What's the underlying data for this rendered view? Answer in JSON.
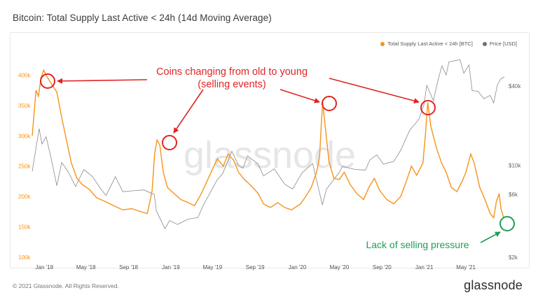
{
  "header": {
    "title": "Bitcoin: Total Supply Last Active < 24h (14d Moving Average)"
  },
  "footer": {
    "copyright": "© 2021 Glassnode. All Rights Reserved.",
    "logo": "glassnode"
  },
  "watermark": "glassnode",
  "annotations": {
    "main_line1": "Coins changing from old to young",
    "main_line2": "(selling events)",
    "green": "Lack of selling pressure"
  },
  "colors": {
    "supply": "#f7931a",
    "price": "#8a8a8a",
    "red": "#e02424",
    "green": "#1f9d55"
  },
  "chart_data": {
    "type": "line",
    "title": "Bitcoin: Total Supply Last Active < 24h (14d Moving Average)",
    "x_range": [
      "2017-11-27",
      "2021-08-20"
    ],
    "x_ticks": [
      "Jan '18",
      "May '18",
      "Sep '18",
      "Jan '19",
      "May '19",
      "Sep '19",
      "Jan '20",
      "May '20",
      "Sep '20",
      "Jan '21",
      "May '21"
    ],
    "y_left": {
      "ticks": [
        "100k",
        "150k",
        "200k",
        "250k",
        "300k",
        "350k",
        "400k"
      ],
      "range": [
        100000,
        420000
      ]
    },
    "y_right": {
      "scale": "log",
      "ticks": [
        "$2k",
        "$6k",
        "$10k",
        "$40k"
      ],
      "range": [
        2000,
        60000
      ]
    },
    "legend_position": "top-right",
    "grid": false,
    "series": [
      {
        "name": "Total Supply Last Active < 24h [BTC]",
        "axis": "left",
        "points": [
          [
            "2017-11-27",
            300000
          ],
          [
            "2017-12-08",
            375000
          ],
          [
            "2017-12-15",
            365000
          ],
          [
            "2017-12-22",
            395000
          ],
          [
            "2017-12-30",
            408000
          ],
          [
            "2018-01-08",
            398000
          ],
          [
            "2018-01-22",
            385000
          ],
          [
            "2018-02-06",
            372000
          ],
          [
            "2018-02-20",
            330000
          ],
          [
            "2018-03-05",
            295000
          ],
          [
            "2018-03-20",
            255000
          ],
          [
            "2018-04-05",
            230000
          ],
          [
            "2018-04-20",
            220000
          ],
          [
            "2018-05-10",
            212000
          ],
          [
            "2018-06-01",
            198000
          ],
          [
            "2018-06-25",
            192000
          ],
          [
            "2018-07-20",
            185000
          ],
          [
            "2018-08-15",
            178000
          ],
          [
            "2018-09-10",
            180000
          ],
          [
            "2018-10-01",
            176000
          ],
          [
            "2018-10-25",
            172000
          ],
          [
            "2018-11-08",
            210000
          ],
          [
            "2018-11-15",
            270000
          ],
          [
            "2018-11-22",
            293000
          ],
          [
            "2018-11-30",
            285000
          ],
          [
            "2018-12-10",
            240000
          ],
          [
            "2018-12-22",
            215000
          ],
          [
            "2019-01-10",
            205000
          ],
          [
            "2019-01-30",
            195000
          ],
          [
            "2019-02-20",
            190000
          ],
          [
            "2019-03-10",
            185000
          ],
          [
            "2019-03-30",
            205000
          ],
          [
            "2019-04-15",
            225000
          ],
          [
            "2019-05-01",
            245000
          ],
          [
            "2019-05-15",
            262000
          ],
          [
            "2019-06-01",
            250000
          ],
          [
            "2019-06-15",
            270000
          ],
          [
            "2019-07-01",
            260000
          ],
          [
            "2019-07-15",
            240000
          ],
          [
            "2019-08-01",
            228000
          ],
          [
            "2019-08-20",
            218000
          ],
          [
            "2019-09-10",
            205000
          ],
          [
            "2019-09-25",
            188000
          ],
          [
            "2019-10-15",
            182000
          ],
          [
            "2019-11-05",
            190000
          ],
          [
            "2019-11-25",
            182000
          ],
          [
            "2019-12-15",
            178000
          ],
          [
            "2020-01-10",
            188000
          ],
          [
            "2020-01-25",
            200000
          ],
          [
            "2020-02-10",
            215000
          ],
          [
            "2020-02-25",
            240000
          ],
          [
            "2020-03-05",
            265000
          ],
          [
            "2020-03-10",
            320000
          ],
          [
            "2020-03-14",
            355000
          ],
          [
            "2020-03-22",
            310000
          ],
          [
            "2020-04-01",
            258000
          ],
          [
            "2020-04-15",
            230000
          ],
          [
            "2020-05-01",
            228000
          ],
          [
            "2020-05-15",
            240000
          ],
          [
            "2020-06-01",
            220000
          ],
          [
            "2020-06-20",
            205000
          ],
          [
            "2020-07-10",
            195000
          ],
          [
            "2020-07-25",
            215000
          ],
          [
            "2020-08-10",
            230000
          ],
          [
            "2020-08-25",
            210000
          ],
          [
            "2020-09-15",
            195000
          ],
          [
            "2020-10-05",
            188000
          ],
          [
            "2020-10-25",
            200000
          ],
          [
            "2020-11-10",
            225000
          ],
          [
            "2020-11-25",
            250000
          ],
          [
            "2020-12-10",
            235000
          ],
          [
            "2020-12-28",
            255000
          ],
          [
            "2021-01-05",
            308000
          ],
          [
            "2021-01-11",
            355000
          ],
          [
            "2021-01-20",
            315000
          ],
          [
            "2021-02-05",
            280000
          ],
          [
            "2021-02-20",
            255000
          ],
          [
            "2021-03-05",
            240000
          ],
          [
            "2021-03-20",
            215000
          ],
          [
            "2021-04-05",
            208000
          ],
          [
            "2021-04-20",
            225000
          ],
          [
            "2021-05-01",
            240000
          ],
          [
            "2021-05-15",
            270000
          ],
          [
            "2021-05-25",
            255000
          ],
          [
            "2021-06-10",
            215000
          ],
          [
            "2021-06-25",
            195000
          ],
          [
            "2021-07-10",
            172000
          ],
          [
            "2021-07-20",
            165000
          ],
          [
            "2021-07-28",
            192000
          ],
          [
            "2021-08-05",
            205000
          ],
          [
            "2021-08-10",
            180000
          ],
          [
            "2021-08-18",
            165000
          ]
        ]
      },
      {
        "name": "Price [USD]",
        "axis": "right",
        "points": [
          [
            "2017-11-27",
            9000
          ],
          [
            "2017-12-08",
            13500
          ],
          [
            "2017-12-17",
            19000
          ],
          [
            "2017-12-25",
            14500
          ],
          [
            "2018-01-06",
            16500
          ],
          [
            "2018-01-20",
            11500
          ],
          [
            "2018-02-06",
            7000
          ],
          [
            "2018-02-20",
            10500
          ],
          [
            "2018-03-10",
            9000
          ],
          [
            "2018-04-01",
            6900
          ],
          [
            "2018-04-25",
            9300
          ],
          [
            "2018-05-20",
            8200
          ],
          [
            "2018-06-15",
            6500
          ],
          [
            "2018-06-28",
            5900
          ],
          [
            "2018-07-25",
            8200
          ],
          [
            "2018-08-15",
            6300
          ],
          [
            "2018-09-15",
            6400
          ],
          [
            "2018-10-15",
            6500
          ],
          [
            "2018-11-14",
            6000
          ],
          [
            "2018-11-20",
            4500
          ],
          [
            "2018-12-15",
            3300
          ],
          [
            "2018-12-28",
            3800
          ],
          [
            "2019-01-20",
            3550
          ],
          [
            "2019-02-20",
            3900
          ],
          [
            "2019-03-20",
            4000
          ],
          [
            "2019-04-05",
            5000
          ],
          [
            "2019-05-15",
            7800
          ],
          [
            "2019-05-30",
            8600
          ],
          [
            "2019-06-26",
            12800
          ],
          [
            "2019-07-15",
            10000
          ],
          [
            "2019-07-28",
            9500
          ],
          [
            "2019-08-10",
            11800
          ],
          [
            "2019-09-10",
            10200
          ],
          [
            "2019-09-25",
            8300
          ],
          [
            "2019-10-26",
            9400
          ],
          [
            "2019-11-25",
            7200
          ],
          [
            "2019-12-18",
            6600
          ],
          [
            "2020-01-15",
            8800
          ],
          [
            "2020-02-14",
            10300
          ],
          [
            "2020-03-13",
            5000
          ],
          [
            "2020-03-25",
            6600
          ],
          [
            "2020-04-30",
            8800
          ],
          [
            "2020-05-10",
            9800
          ],
          [
            "2020-06-15",
            9300
          ],
          [
            "2020-07-15",
            9200
          ],
          [
            "2020-07-28",
            11000
          ],
          [
            "2020-08-17",
            12000
          ],
          [
            "2020-09-05",
            10200
          ],
          [
            "2020-10-05",
            10700
          ],
          [
            "2020-10-25",
            13000
          ],
          [
            "2020-11-20",
            18500
          ],
          [
            "2020-12-17",
            22500
          ],
          [
            "2020-12-31",
            29000
          ],
          [
            "2021-01-08",
            40500
          ],
          [
            "2021-01-27",
            31000
          ],
          [
            "2021-02-10",
            45000
          ],
          [
            "2021-02-21",
            57000
          ],
          [
            "2021-03-05",
            48500
          ],
          [
            "2021-03-13",
            61000
          ],
          [
            "2021-04-14",
            63500
          ],
          [
            "2021-04-25",
            50000
          ],
          [
            "2021-05-10",
            58000
          ],
          [
            "2021-05-19",
            37000
          ],
          [
            "2021-06-05",
            36500
          ],
          [
            "2021-06-22",
            32000
          ],
          [
            "2021-07-10",
            34000
          ],
          [
            "2021-07-20",
            29800
          ],
          [
            "2021-07-31",
            41000
          ],
          [
            "2021-08-10",
            45500
          ],
          [
            "2021-08-20",
            47000
          ]
        ]
      }
    ]
  }
}
